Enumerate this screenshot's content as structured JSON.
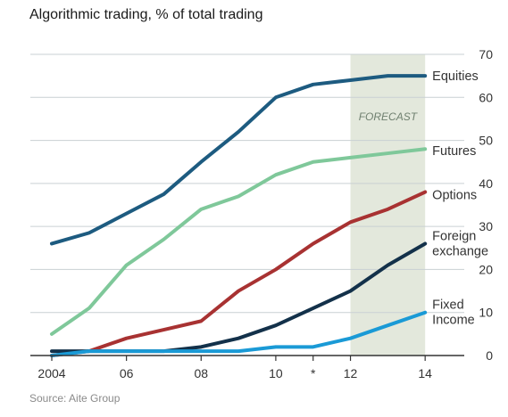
{
  "title": "Algorithmic trading, % of total trading",
  "source": "Source: Aite Group",
  "forecast_label": "FORECAST",
  "chart_data": {
    "type": "line",
    "title": "Algorithmic trading, % of total trading",
    "xlabel": "",
    "ylabel": "",
    "x": [
      2004,
      2005,
      2006,
      2007,
      2008,
      2009,
      2010,
      2011,
      2012,
      2013,
      2014
    ],
    "xlim": [
      2004,
      2015
    ],
    "ylim": [
      0,
      70
    ],
    "x_ticks": [
      {
        "x": 2004,
        "label": "2004"
      },
      {
        "x": 2006,
        "label": "06"
      },
      {
        "x": 2008,
        "label": "08"
      },
      {
        "x": 2010,
        "label": "10"
      },
      {
        "x": 2011,
        "label": "*"
      },
      {
        "x": 2012,
        "label": "12"
      },
      {
        "x": 2014,
        "label": "14"
      }
    ],
    "y_ticks": [
      0,
      10,
      20,
      30,
      40,
      50,
      60,
      70
    ],
    "y_axis_side": "right",
    "grid": true,
    "forecast_region": [
      2012,
      2014
    ],
    "series": [
      {
        "name": "Equities",
        "label_lines": [
          "Equities"
        ],
        "color": "#1d5b80",
        "values": [
          26,
          28.5,
          33,
          37.5,
          45,
          52,
          60,
          63,
          64,
          65,
          65
        ]
      },
      {
        "name": "Futures",
        "label_lines": [
          "Futures"
        ],
        "color": "#7fc89a",
        "values": [
          5,
          11,
          21,
          27,
          34,
          37,
          42,
          45,
          46,
          47,
          48
        ]
      },
      {
        "name": "Options",
        "label_lines": [
          "Options"
        ],
        "color": "#a83232",
        "values": [
          0,
          1,
          4,
          6,
          8,
          15,
          20,
          26,
          31,
          34,
          38
        ]
      },
      {
        "name": "Foreign exchange",
        "label_lines": [
          "Foreign",
          "exchange"
        ],
        "color": "#13314a",
        "values": [
          1,
          1,
          1,
          1,
          2,
          4,
          7,
          11,
          15,
          21,
          26
        ]
      },
      {
        "name": "Fixed Income",
        "label_lines": [
          "Fixed",
          "Income"
        ],
        "color": "#1a9ad6",
        "values": [
          0,
          1,
          1,
          1,
          1,
          1,
          2,
          2,
          4,
          7,
          10
        ]
      }
    ]
  }
}
